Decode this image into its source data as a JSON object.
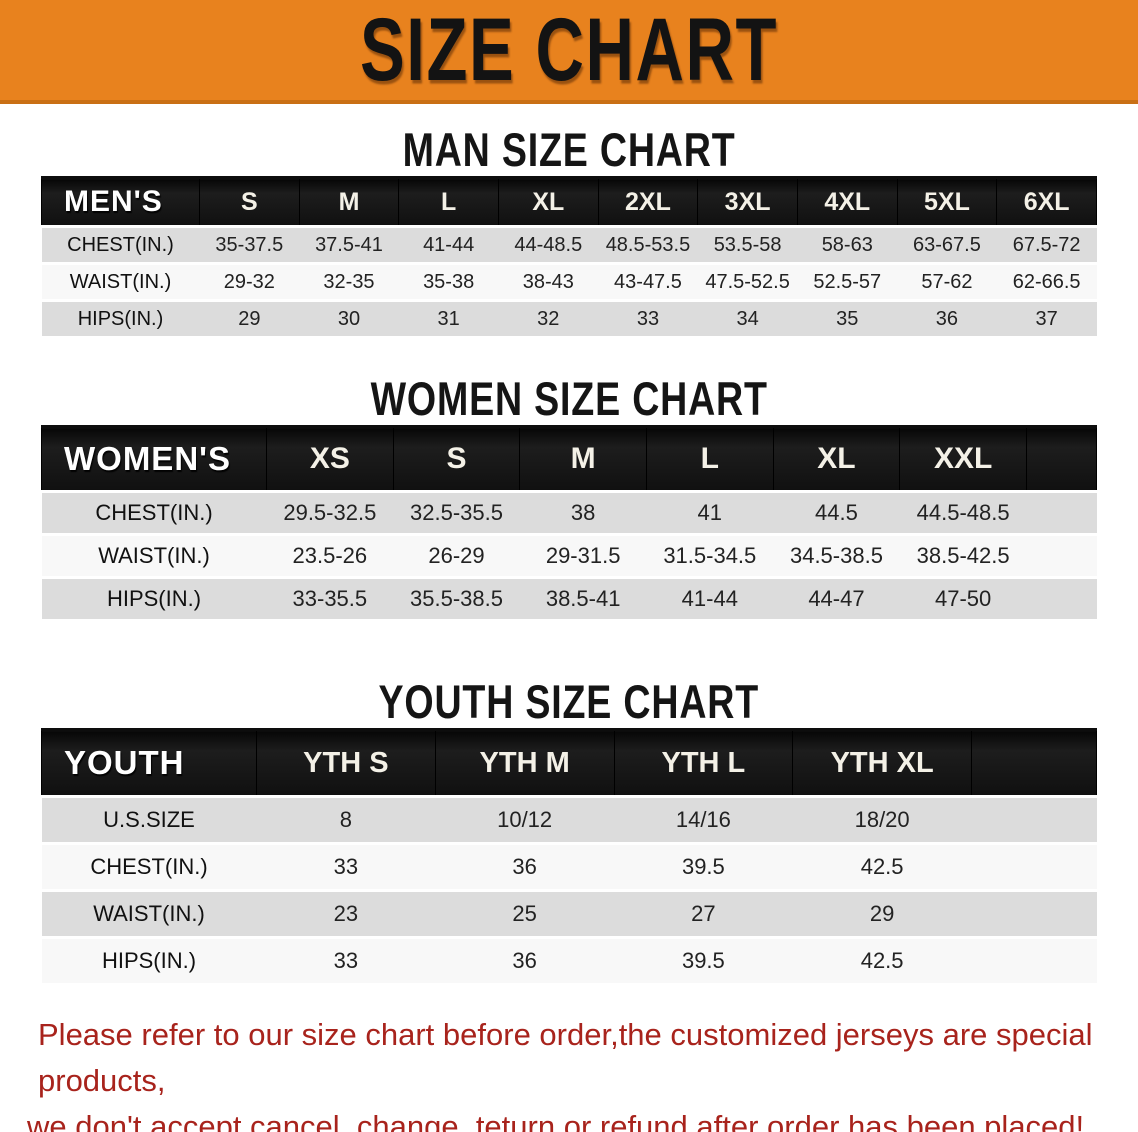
{
  "banner": {
    "title": "SIZE CHART",
    "bg_color": "#E8821E",
    "edge_color": "#C96F15",
    "text_color": "#131313"
  },
  "colors": {
    "table_header_bg": "#141414",
    "table_header_text": "#F4F1E7",
    "row_gray": "#DCDCDC",
    "row_white": "#F8F8F8",
    "disclaimer_red": "#A8231C"
  },
  "sections": [
    {
      "heading": "MAN SIZE CHART",
      "table": {
        "corner_label": "MEN'S",
        "columns": [
          "S",
          "M",
          "L",
          "XL",
          "2XL",
          "3XL",
          "4XL",
          "5XL",
          "6XL"
        ],
        "rows": [
          {
            "label": "CHEST(IN.)",
            "values": [
              "35-37.5",
              "37.5-41",
              "41-44",
              "44-48.5",
              "48.5-53.5",
              "53.5-58",
              "58-63",
              "63-67.5",
              "67.5-72"
            ]
          },
          {
            "label": "WAIST(IN.)",
            "values": [
              "29-32",
              "32-35",
              "35-38",
              "38-43",
              "43-47.5",
              "47.5-52.5",
              "52.5-57",
              "57-62",
              "62-66.5"
            ]
          },
          {
            "label": "HIPS(IN.)",
            "values": [
              "29",
              "30",
              "31",
              "32",
              "33",
              "34",
              "35",
              "36",
              "37"
            ]
          }
        ]
      }
    },
    {
      "heading": "WOMEN SIZE CHART",
      "table": {
        "corner_label": "WOMEN'S",
        "columns": [
          "XS",
          "S",
          "M",
          "L",
          "XL",
          "XXL"
        ],
        "rows": [
          {
            "label": "CHEST(IN.)",
            "values": [
              "29.5-32.5",
              "32.5-35.5",
              "38",
              "41",
              "44.5",
              "44.5-48.5"
            ]
          },
          {
            "label": "WAIST(IN.)",
            "values": [
              "23.5-26",
              "26-29",
              "29-31.5",
              "31.5-34.5",
              "34.5-38.5",
              "38.5-42.5"
            ]
          },
          {
            "label": "HIPS(IN.)",
            "values": [
              "33-35.5",
              "35.5-38.5",
              "38.5-41",
              "41-44",
              "44-47",
              "47-50"
            ]
          }
        ]
      }
    },
    {
      "heading": "YOUTH SIZE CHART",
      "table": {
        "corner_label": "YOUTH",
        "columns": [
          "YTH S",
          "YTH M",
          "YTH L",
          "YTH XL"
        ],
        "rows": [
          {
            "label": "U.S.SIZE",
            "values": [
              "8",
              "10/12",
              "14/16",
              "18/20"
            ]
          },
          {
            "label": "CHEST(IN.)",
            "values": [
              "33",
              "36",
              "39.5",
              "42.5"
            ]
          },
          {
            "label": "WAIST(IN.)",
            "values": [
              "23",
              "25",
              "27",
              "29"
            ]
          },
          {
            "label": "HIPS(IN.)",
            "values": [
              "33",
              "36",
              "39.5",
              "42.5"
            ]
          }
        ]
      }
    }
  ],
  "disclaimer": {
    "line1": "Please refer to our size chart before order,the customized jerseys are special products,",
    "line2": "we don't accept cancel, change, teturn or refund after order has been placed!"
  }
}
